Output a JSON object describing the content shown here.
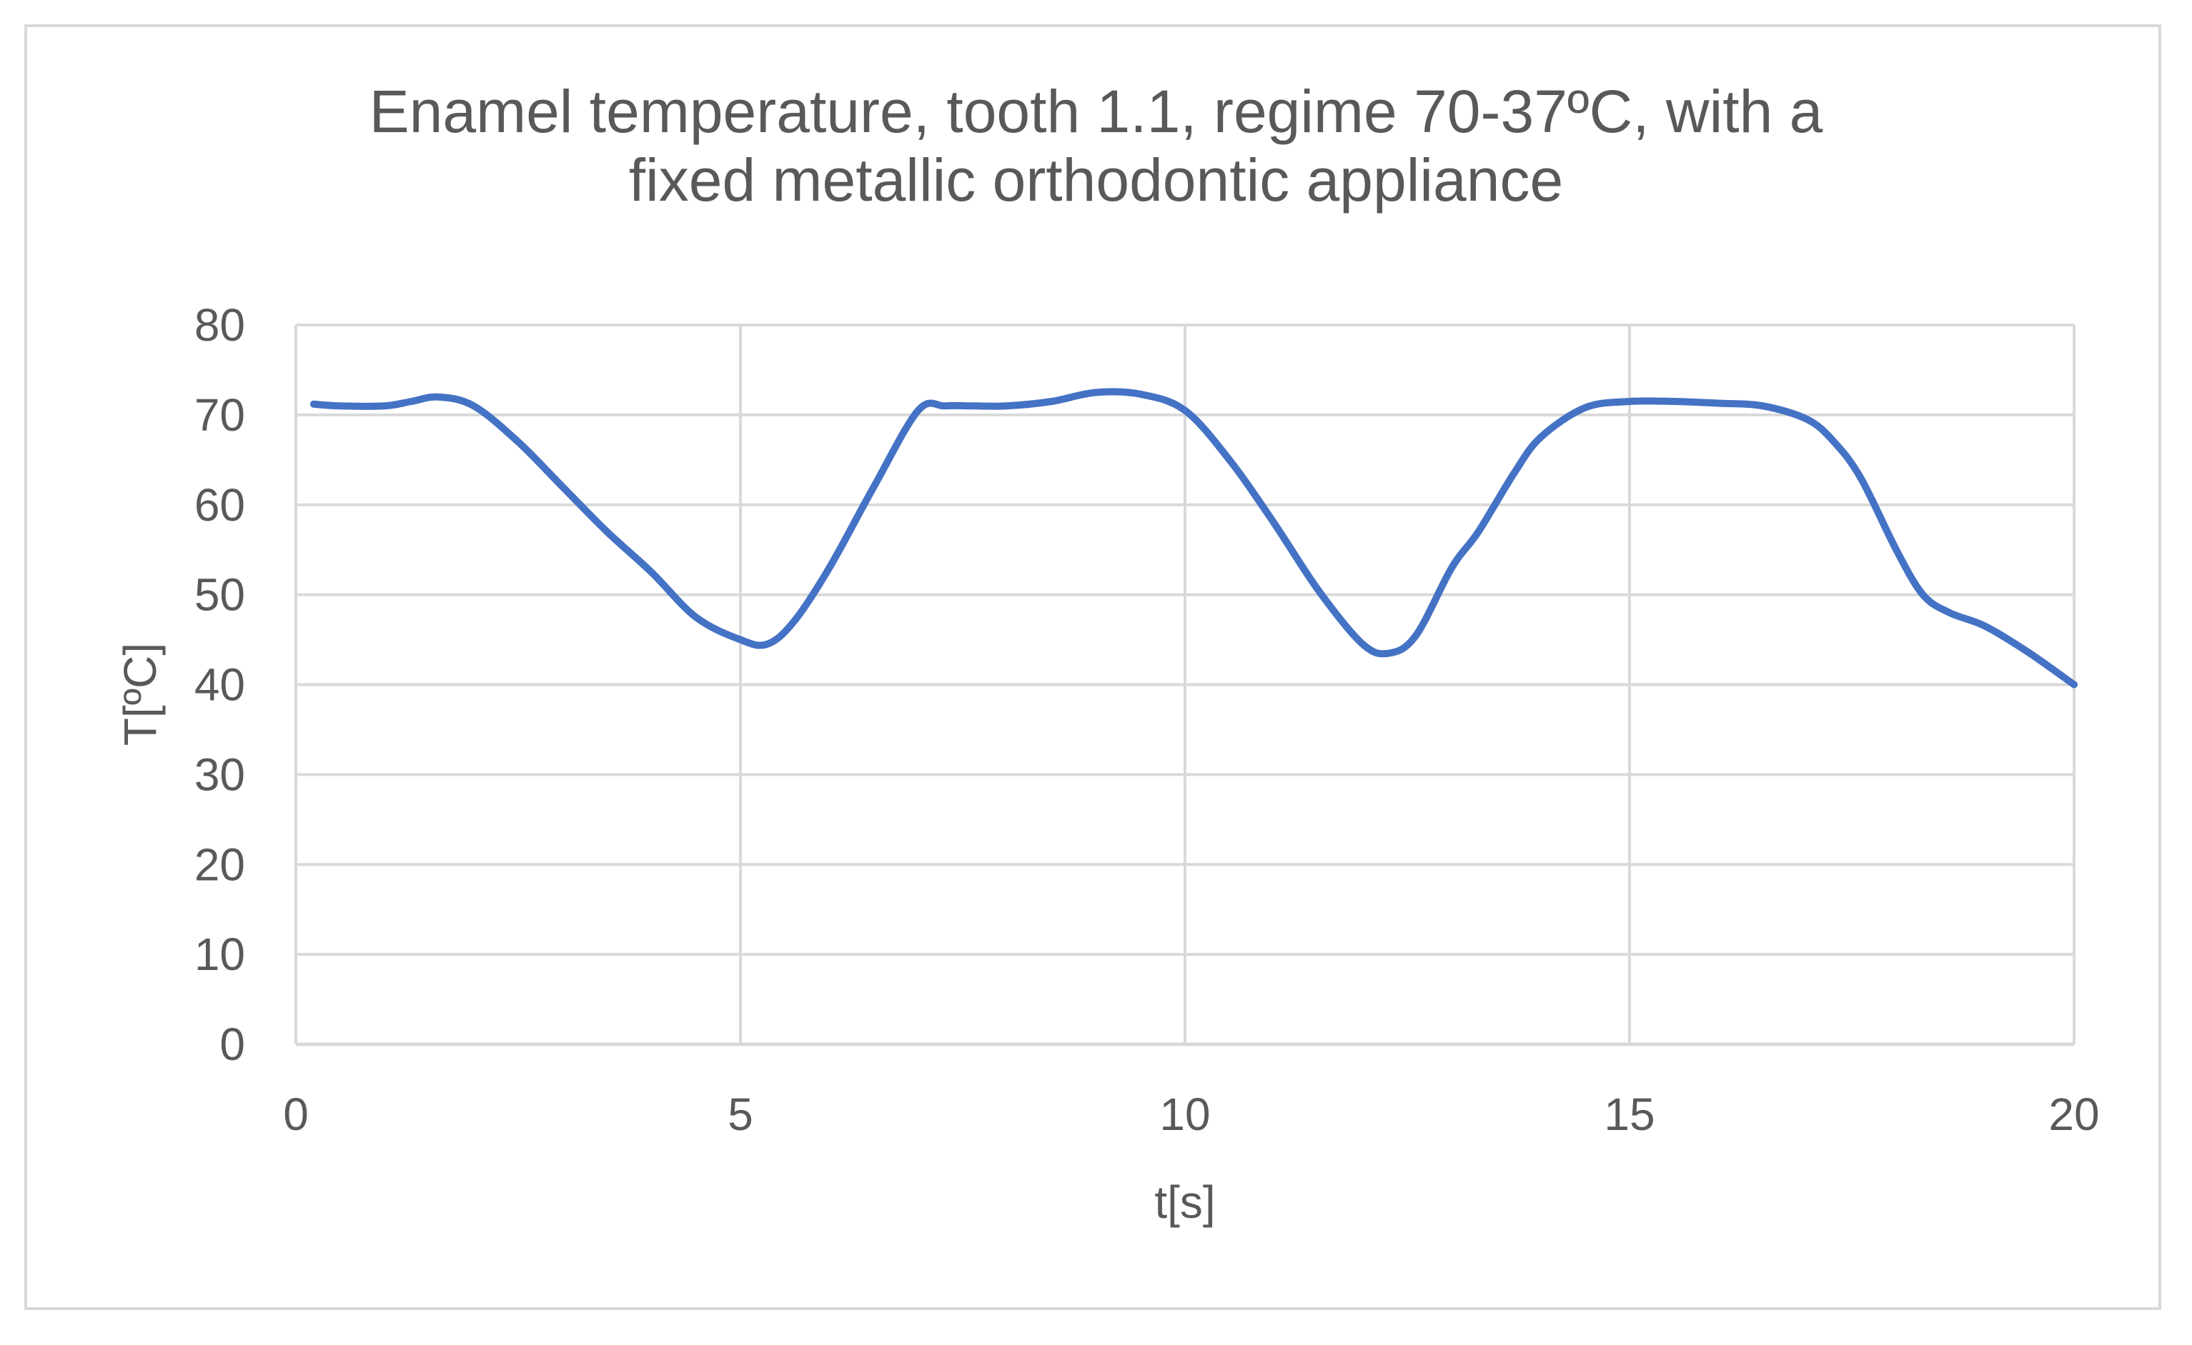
{
  "chart_data": {
    "type": "line",
    "title_lines": [
      "Enamel temperature, tooth 1.1, regime 70-37ºC, with a",
      "fixed metallic orthodontic appliance"
    ],
    "xlabel": "t[s]",
    "ylabel": "T[ºC]",
    "xlim": [
      0,
      20
    ],
    "ylim": [
      0,
      80
    ],
    "xticks": [
      0,
      5,
      10,
      15,
      20
    ],
    "yticks": [
      0,
      10,
      20,
      30,
      40,
      50,
      60,
      70,
      80
    ],
    "grid": true,
    "legend": "none",
    "series": [
      {
        "color": "#4472c4",
        "x": [
          0.2,
          0.5,
          1.0,
          1.3,
          1.6,
          2.0,
          2.5,
          3.0,
          3.5,
          4.0,
          4.5,
          5.0,
          5.3,
          5.6,
          6.0,
          6.5,
          7.0,
          7.3,
          7.6,
          8.0,
          8.5,
          9.0,
          9.5,
          10.0,
          10.5,
          11.0,
          11.5,
          12.0,
          12.3,
          12.6,
          13.0,
          13.3,
          13.7,
          14.0,
          14.5,
          15.0,
          15.5,
          16.0,
          16.5,
          17.0,
          17.3,
          17.6,
          18.0,
          18.3,
          18.6,
          19.0,
          19.5,
          20.0
        ],
        "values": [
          71.2,
          71.0,
          71.0,
          71.5,
          72.0,
          71.0,
          67.0,
          62.0,
          57.0,
          52.5,
          47.5,
          45.0,
          44.5,
          47.0,
          53.0,
          62.0,
          70.5,
          71.0,
          71.0,
          71.0,
          71.5,
          72.5,
          72.3,
          70.5,
          65.0,
          58.0,
          50.5,
          44.5,
          43.5,
          45.5,
          53.0,
          57.0,
          63.5,
          67.5,
          70.8,
          71.5,
          71.5,
          71.3,
          71.0,
          69.5,
          67.0,
          63.0,
          55.0,
          50.0,
          48.0,
          46.5,
          43.5,
          40.0
        ]
      }
    ]
  }
}
